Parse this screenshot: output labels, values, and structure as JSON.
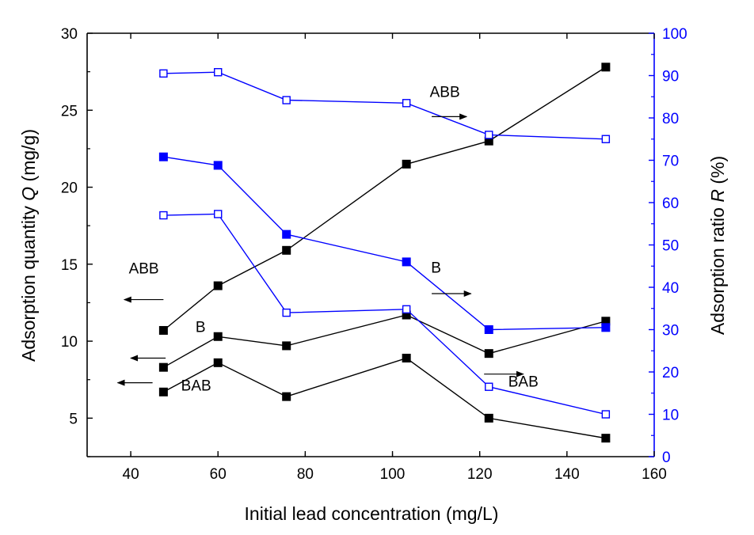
{
  "chart_data": {
    "type": "line",
    "xlabel": "Initial lead concentration (mg/L)",
    "ylabel_left": {
      "pre": "Adsorption quantity ",
      "sym": "Q",
      "post": " (mg/g)"
    },
    "ylabel_right": {
      "pre": "Adsorption ratio ",
      "sym": "R",
      "post": " (%)"
    },
    "xlim": [
      30,
      160
    ],
    "ylim_left": [
      2.5,
      30
    ],
    "ylim_right": [
      0,
      100
    ],
    "x_ticks": [
      40,
      60,
      80,
      100,
      120,
      140,
      160
    ],
    "y_left_ticks": [
      5,
      10,
      15,
      20,
      25,
      30
    ],
    "y_right_ticks": [
      0,
      10,
      20,
      30,
      40,
      50,
      60,
      70,
      80,
      90,
      100
    ],
    "grid": false,
    "colors": {
      "left_axis": "#000000",
      "right_axis": "#0000ff",
      "q_series": "#000000",
      "r_series": "#0000ff"
    },
    "x": [
      47.5,
      60,
      75.7,
      103.2,
      122.1,
      148.9
    ],
    "series": [
      {
        "key": "q_abb",
        "axis": "left",
        "marker": "filled",
        "color": "#000000",
        "values": [
          10.7,
          13.6,
          15.9,
          21.5,
          23.0,
          27.8
        ]
      },
      {
        "key": "q_b",
        "axis": "left",
        "marker": "filled",
        "color": "#000000",
        "values": [
          8.3,
          10.3,
          9.7,
          11.7,
          9.2,
          11.3
        ]
      },
      {
        "key": "q_bab",
        "axis": "left",
        "marker": "filled",
        "color": "#000000",
        "values": [
          6.7,
          8.6,
          6.4,
          8.9,
          5.0,
          3.7
        ]
      },
      {
        "key": "r_abb",
        "axis": "right",
        "marker": "open",
        "color": "#0000ff",
        "values": [
          90.5,
          90.8,
          84.2,
          83.5,
          76.0,
          75.0
        ]
      },
      {
        "key": "r_b",
        "axis": "right",
        "marker": "filled",
        "color": "#0000ff",
        "values": [
          70.8,
          68.8,
          52.5,
          46.0,
          30.0,
          30.5
        ]
      },
      {
        "key": "r_bab",
        "axis": "right",
        "marker": "open",
        "color": "#0000ff",
        "values": [
          57.0,
          57.3,
          34.0,
          34.8,
          16.5,
          10.0
        ]
      }
    ],
    "annotations": [
      {
        "text": "ABB",
        "x": 112,
        "y_right": 85.0,
        "arrow_from_x": 109,
        "arrow_to_x": 117,
        "arrow_y_right": 80.3,
        "arrow_dir": "right"
      },
      {
        "text": "ABB",
        "x": 43,
        "y_left": 14.4,
        "arrow_from_x": 47.5,
        "arrow_to_x": 38.5,
        "arrow_y_left": 12.7,
        "arrow_dir": "left"
      },
      {
        "text": "B",
        "x": 56,
        "y_left": 10.6,
        "arrow_from_x": 48,
        "arrow_to_x": 40,
        "arrow_y_left": 8.9,
        "arrow_dir": "left"
      },
      {
        "text": "BAB",
        "x": 55,
        "y_left": 6.8,
        "arrow_from_x": 45,
        "arrow_to_x": 37,
        "arrow_y_left": 7.3,
        "arrow_dir": "left"
      },
      {
        "text": "B",
        "x": 110,
        "y_right": 43.5,
        "arrow_from_x": 109,
        "arrow_to_x": 118,
        "arrow_y_right": 38.5,
        "arrow_dir": "right"
      },
      {
        "text": "BAB",
        "x": 130,
        "y_right": 16.5,
        "arrow_from_x": 121,
        "arrow_to_x": 130,
        "arrow_y_right": 19.5,
        "arrow_dir": "right"
      }
    ]
  }
}
